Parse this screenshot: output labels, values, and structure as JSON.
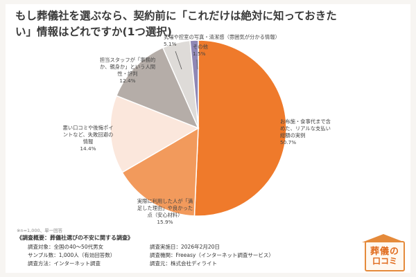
{
  "title": "もし葬儀社を選ぶなら、契約前に「これだけは絶対に知っておきたい」情報はどれですか(1つ選択)",
  "note": "※n=1,000、単一回答",
  "survey": {
    "heading": "《調査概要：葬儀社選びの不安に関する調査》",
    "rows_left": [
      "調査対象：全国の40〜50代男女",
      "サンプル数：1,000人（有効回答数）",
      "調査方法：インターネット調査"
    ],
    "rows_right": [
      "調査実施日：2026年2月20日",
      "調査機関：Freeasy（インターネット調査サービス）",
      "調査元：株式会社ディライト"
    ]
  },
  "logo": {
    "top": "葬儀の",
    "bottom": "口コミ"
  },
  "chart_data": {
    "type": "pie",
    "slices": [
      {
        "label_lines": [
          "お布施・食事代まで含",
          "めた、リアルな支払い",
          "総額の実例"
        ],
        "value": 50.7,
        "value_text": "50.7%",
        "color": "#ef7a2b"
      },
      {
        "label_lines": [
          "実際に利用した人が「満",
          "足した理由」や良かった",
          "点（安心材料）"
        ],
        "value": 15.9,
        "value_text": "15.9%",
        "color": "#f29a5c"
      },
      {
        "label_lines": [
          "悪い口コミや後悔ポイ",
          "ントなど、失敗回避の",
          "情報"
        ],
        "value": 14.4,
        "value_text": "14.4%",
        "color": "#fbe7dc"
      },
      {
        "label_lines": [
          "担当スタッフが「事務的",
          "か、親身か」という人間",
          "性・評判"
        ],
        "value": 12.4,
        "value_text": "12.4%",
        "color": "#b5ada8"
      },
      {
        "label_lines": [
          "式場や控室の写真・清潔感（雰囲気が分かる情報）"
        ],
        "value": 5.1,
        "value_text": "5.1%",
        "color": "#dedbd8"
      },
      {
        "label_lines": [
          "その他"
        ],
        "value": 1.5,
        "value_text": "1.5%",
        "color": "#8f87b5"
      }
    ]
  }
}
